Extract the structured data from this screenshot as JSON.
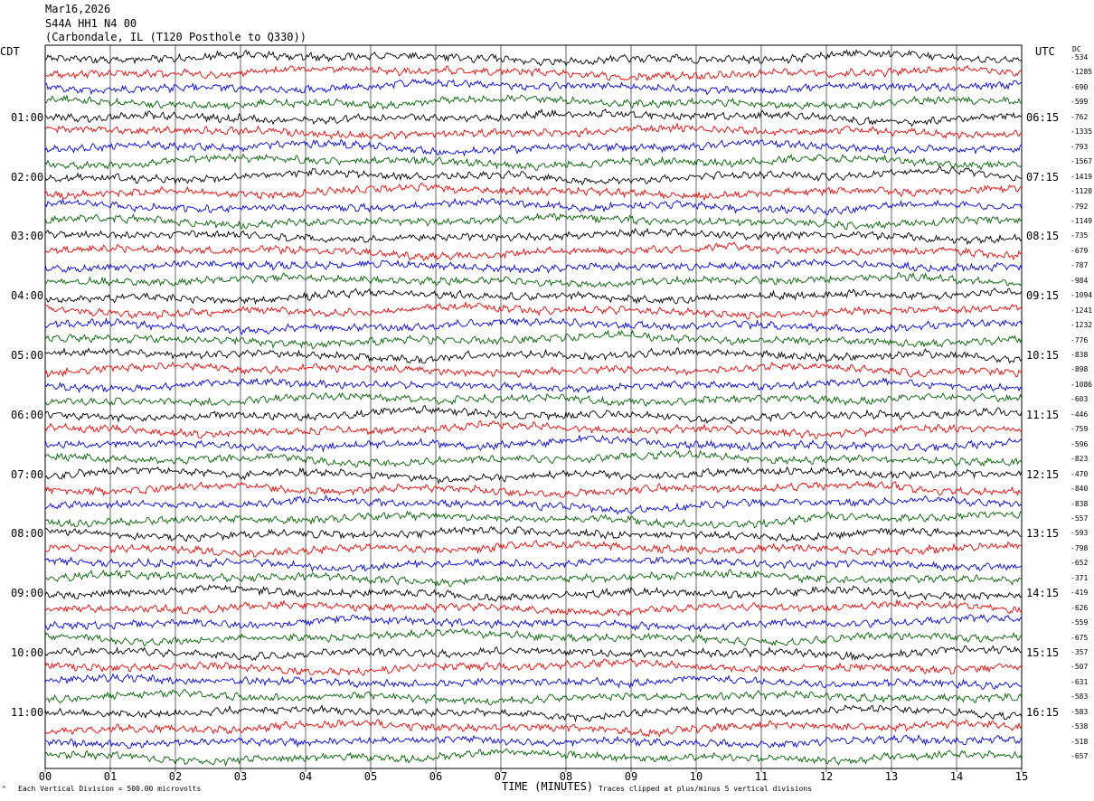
{
  "header": {
    "date": "Mar16,2026",
    "station": "S44A HH1 N4 00",
    "location": "(Carbondale, IL (T120 Posthole to Q330))"
  },
  "tz_left": "CDT",
  "tz_right": "UTC",
  "dc_label": "DC",
  "footer": {
    "scale": "Each Vertical Division =  500.00 microvolts",
    "clip": "Traces clipped at plus/minus 5 vertical divisions",
    "mark": "^"
  },
  "colors": {
    "trace_cycle": [
      "#000000",
      "#ff0000",
      "#0000ff",
      "#006400"
    ],
    "grid": "#000000"
  },
  "chart_data": {
    "type": "line",
    "title": "Mar16,2026 S44A HH1 N4 00 (Carbondale, IL (T120 Posthole to Q330))",
    "xlabel": "TIME (MINUTES)",
    "ylabel": "",
    "xlim": [
      0,
      15
    ],
    "x_ticks": [
      "00",
      "01",
      "02",
      "03",
      "04",
      "05",
      "06",
      "07",
      "08",
      "09",
      "10",
      "11",
      "12",
      "13",
      "14",
      "15"
    ],
    "left_time_labels": [
      "01:00",
      "02:00",
      "03:00",
      "04:00",
      "05:00",
      "06:00",
      "07:00",
      "08:00",
      "09:00",
      "10:00",
      "11:00"
    ],
    "right_time_labels": [
      "06:15",
      "07:15",
      "08:15",
      "09:15",
      "10:15",
      "11:15",
      "12:15",
      "13:15",
      "14:15",
      "15:15",
      "16:15"
    ],
    "trace_minutes_per_line": 15,
    "trace_count": 48,
    "dc_offsets": [
      -534,
      -1285,
      -690,
      -599,
      -762,
      -1335,
      -793,
      -1567,
      -1419,
      -1120,
      -792,
      -1149,
      -735,
      -679,
      -787,
      -984,
      -1094,
      -1241,
      -1232,
      -776,
      -838,
      -898,
      -1086,
      -603,
      -446,
      -759,
      -596,
      -823,
      -470,
      -840,
      -838,
      -557,
      -593,
      -798,
      -652,
      -371,
      -419,
      -626,
      -559,
      -675,
      -357,
      -507,
      -631,
      -583,
      -583,
      -538,
      -518,
      -657
    ],
    "grid": true
  }
}
